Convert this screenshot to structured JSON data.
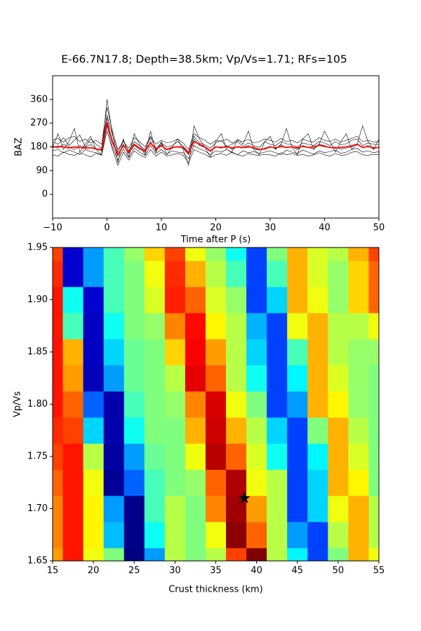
{
  "chart_data": [
    {
      "type": "line",
      "title": "E-66.7N17.8; Depth=38.5km; Vp/Vs=1.71; RFs=105",
      "xlabel": "Time after P (s)",
      "ylabel": "BAZ",
      "xlim": [
        -10,
        50
      ],
      "ylim": [
        -90,
        450
      ],
      "xticks": [
        {
          "value": -10,
          "label": "−10"
        },
        0,
        10,
        20,
        30,
        40,
        50
      ],
      "yticks": [
        0,
        90,
        180,
        270,
        360
      ],
      "x": [
        -10,
        -9,
        -8,
        -7,
        -6,
        -5,
        -4,
        -3,
        -2,
        -1,
        0,
        1,
        2,
        3,
        4,
        5,
        6,
        7,
        8,
        9,
        10,
        11,
        12,
        13,
        14,
        15,
        16,
        17,
        18,
        19,
        20,
        21,
        22,
        23,
        24,
        25,
        26,
        27,
        28,
        29,
        30,
        31,
        32,
        33,
        34,
        35,
        36,
        37,
        38,
        39,
        40,
        41,
        42,
        43,
        44,
        45,
        46,
        47,
        48,
        49,
        50
      ],
      "series": [
        {
          "color": "#000000",
          "values": [
            205,
            212,
            198,
            215,
            220,
            200,
            210,
            195,
            205,
            190,
            330,
            240,
            170,
            200,
            175,
            215,
            200,
            180,
            220,
            190,
            205,
            195,
            200,
            210,
            195,
            170,
            230,
            215,
            205,
            190,
            205,
            200,
            210,
            195,
            205,
            200,
            208,
            195,
            200,
            210,
            205,
            198,
            212,
            200,
            205,
            195,
            210,
            202,
            198,
            215,
            205,
            200,
            210,
            198,
            205,
            212,
            220,
            200,
            205,
            198,
            200
          ]
        },
        {
          "color": "#000000",
          "values": [
            150,
            145,
            160,
            152,
            148,
            158,
            150,
            142,
            155,
            148,
            240,
            170,
            110,
            160,
            130,
            165,
            150,
            140,
            170,
            145,
            160,
            145,
            150,
            155,
            148,
            120,
            170,
            160,
            152,
            140,
            150,
            155,
            148,
            160,
            150,
            145,
            155,
            150,
            148,
            152,
            150,
            145,
            158,
            150,
            155,
            148,
            152,
            145,
            150,
            158,
            150,
            145,
            155,
            148,
            150,
            160,
            162,
            150,
            148,
            152,
            150
          ]
        },
        {
          "color": "#000000",
          "values": [
            180,
            230,
            170,
            200,
            250,
            160,
            190,
            220,
            170,
            150,
            360,
            230,
            120,
            210,
            140,
            230,
            190,
            150,
            240,
            160,
            200,
            150,
            180,
            210,
            170,
            110,
            260,
            210,
            180,
            140,
            200,
            230,
            170,
            160,
            210,
            190,
            240,
            170,
            150,
            200,
            220,
            170,
            190,
            250,
            180,
            150,
            210,
            230,
            170,
            190,
            240,
            200,
            160,
            200,
            230,
            170,
            190,
            260,
            200,
            170,
            210
          ]
        },
        {
          "color": "#000000",
          "values": [
            185,
            175,
            190,
            180,
            170,
            185,
            178,
            190,
            172,
            165,
            290,
            195,
            145,
            190,
            155,
            185,
            170,
            160,
            200,
            165,
            190,
            168,
            175,
            182,
            175,
            150,
            210,
            185,
            178,
            162,
            182,
            175,
            185,
            170,
            182,
            178,
            185,
            172,
            168,
            175,
            182,
            172,
            188,
            176,
            182,
            170,
            185,
            178,
            172,
            190,
            185,
            176,
            180,
            172,
            175,
            180,
            192,
            176,
            185,
            172,
            180
          ]
        },
        {
          "color": "#000000",
          "values": [
            200,
            190,
            215,
            185,
            205,
            225,
            180,
            210,
            190,
            175,
            300,
            225,
            160,
            205,
            165,
            200,
            185,
            170,
            215,
            175,
            195,
            180,
            185,
            200,
            182,
            160,
            220,
            195,
            188,
            175,
            195,
            205,
            180,
            190,
            200,
            182,
            195,
            185,
            178,
            200,
            190,
            185,
            200,
            192,
            188,
            180,
            195,
            190,
            185,
            200,
            195,
            185,
            200,
            188,
            192,
            205,
            210,
            185,
            195,
            190,
            188
          ]
        },
        {
          "color": "#000000",
          "values": [
            165,
            170,
            158,
            168,
            160,
            150,
            170,
            162,
            158,
            150,
            260,
            180,
            130,
            172,
            140,
            175,
            160,
            148,
            185,
            155,
            170,
            152,
            165,
            160,
            158,
            135,
            185,
            172,
            165,
            150,
            165,
            160,
            170,
            158,
            150,
            165,
            158,
            162,
            155,
            160,
            165,
            158,
            150,
            168,
            160,
            155,
            168,
            160,
            152,
            165,
            158,
            162,
            168,
            155,
            160,
            170,
            175,
            160,
            165,
            158,
            162
          ]
        },
        {
          "color": "#ff0000",
          "values": [
            178,
            182,
            180,
            176,
            180,
            178,
            175,
            177,
            172,
            170,
            272,
            200,
            150,
            185,
            160,
            190,
            175,
            165,
            195,
            170,
            185,
            170,
            178,
            180,
            178,
            155,
            200,
            190,
            180,
            165,
            180,
            178,
            180,
            176,
            180,
            177,
            180,
            178,
            170,
            172,
            180,
            176,
            182,
            178,
            180,
            176,
            182,
            178,
            180,
            186,
            182,
            178,
            176,
            178,
            180,
            184,
            190,
            178,
            182,
            176,
            178
          ]
        }
      ]
    },
    {
      "type": "heatmap",
      "xlabel": "Crust thickness (km)",
      "ylabel": "Vp/Vs",
      "xlim": [
        15,
        55
      ],
      "ylim": [
        1.65,
        1.95
      ],
      "xticks": [
        15,
        20,
        25,
        30,
        35,
        40,
        45,
        50,
        55
      ],
      "yticks": [
        1.65,
        {
          "value": 1.7,
          "label": "1.70"
        },
        1.75,
        {
          "value": 1.8,
          "label": "1.80"
        },
        1.85,
        {
          "value": 1.9,
          "label": "1.90"
        },
        1.95
      ],
      "colormap": "jet",
      "x": [
        15,
        17.5,
        20,
        22.5,
        25,
        27.5,
        30,
        32.5,
        35,
        37.5,
        40,
        42.5,
        45,
        47.5,
        50,
        52.5,
        55
      ],
      "y": [
        1.65,
        1.675,
        1.7,
        1.725,
        1.75,
        1.775,
        1.8,
        1.825,
        1.85,
        1.875,
        1.9,
        1.925,
        1.95
      ],
      "z": [
        [
          0.7,
          0.82,
          0.6,
          0.5,
          0.05,
          0.3,
          0.55,
          0.5,
          0.55,
          0.78,
          0.95,
          0.55,
          0.38,
          0.22,
          0.5,
          0.68,
          0.6
        ],
        [
          0.72,
          0.82,
          0.62,
          0.33,
          0.06,
          0.4,
          0.55,
          0.5,
          0.6,
          0.94,
          0.75,
          0.55,
          0.3,
          0.22,
          0.55,
          0.68,
          0.55
        ],
        [
          0.72,
          0.82,
          0.62,
          0.3,
          0.06,
          0.45,
          0.55,
          0.5,
          0.72,
          0.92,
          0.7,
          0.55,
          0.22,
          0.35,
          0.6,
          0.68,
          0.55
        ],
        [
          0.75,
          0.82,
          0.6,
          0.07,
          0.25,
          0.45,
          0.5,
          0.52,
          0.75,
          0.91,
          0.6,
          0.55,
          0.22,
          0.35,
          0.68,
          0.62,
          0.5
        ],
        [
          0.78,
          0.82,
          0.55,
          0.08,
          0.3,
          0.48,
          0.5,
          0.6,
          0.9,
          0.75,
          0.58,
          0.4,
          0.22,
          0.38,
          0.68,
          0.58,
          0.5
        ],
        [
          0.8,
          0.78,
          0.35,
          0.09,
          0.4,
          0.5,
          0.5,
          0.68,
          0.88,
          0.68,
          0.55,
          0.35,
          0.22,
          0.5,
          0.68,
          0.55,
          0.5
        ],
        [
          0.82,
          0.75,
          0.25,
          0.09,
          0.45,
          0.5,
          0.52,
          0.72,
          0.87,
          0.6,
          0.5,
          0.22,
          0.3,
          0.68,
          0.62,
          0.52,
          0.5
        ],
        [
          0.82,
          0.7,
          0.1,
          0.3,
          0.48,
          0.5,
          0.55,
          0.86,
          0.75,
          0.55,
          0.4,
          0.22,
          0.38,
          0.68,
          0.58,
          0.52,
          0.5
        ],
        [
          0.82,
          0.68,
          0.11,
          0.35,
          0.48,
          0.5,
          0.65,
          0.84,
          0.7,
          0.55,
          0.35,
          0.22,
          0.45,
          0.68,
          0.55,
          0.52,
          0.52
        ],
        [
          0.82,
          0.45,
          0.11,
          0.4,
          0.5,
          0.52,
          0.72,
          0.83,
          0.62,
          0.55,
          0.32,
          0.22,
          0.6,
          0.68,
          0.55,
          0.55,
          0.6
        ],
        [
          0.82,
          0.4,
          0.12,
          0.45,
          0.5,
          0.58,
          0.81,
          0.75,
          0.58,
          0.52,
          0.22,
          0.35,
          0.68,
          0.6,
          0.52,
          0.65,
          0.75
        ],
        [
          0.8,
          0.12,
          0.3,
          0.45,
          0.5,
          0.6,
          0.8,
          0.68,
          0.55,
          0.45,
          0.22,
          0.45,
          0.68,
          0.58,
          0.52,
          0.65,
          0.75
        ],
        [
          0.78,
          0.12,
          0.3,
          0.45,
          0.52,
          0.65,
          0.78,
          0.6,
          0.52,
          0.4,
          0.22,
          0.5,
          0.68,
          0.58,
          0.55,
          0.68,
          0.78
        ]
      ],
      "marker": {
        "x": 38.5,
        "y": 1.71
      }
    }
  ]
}
